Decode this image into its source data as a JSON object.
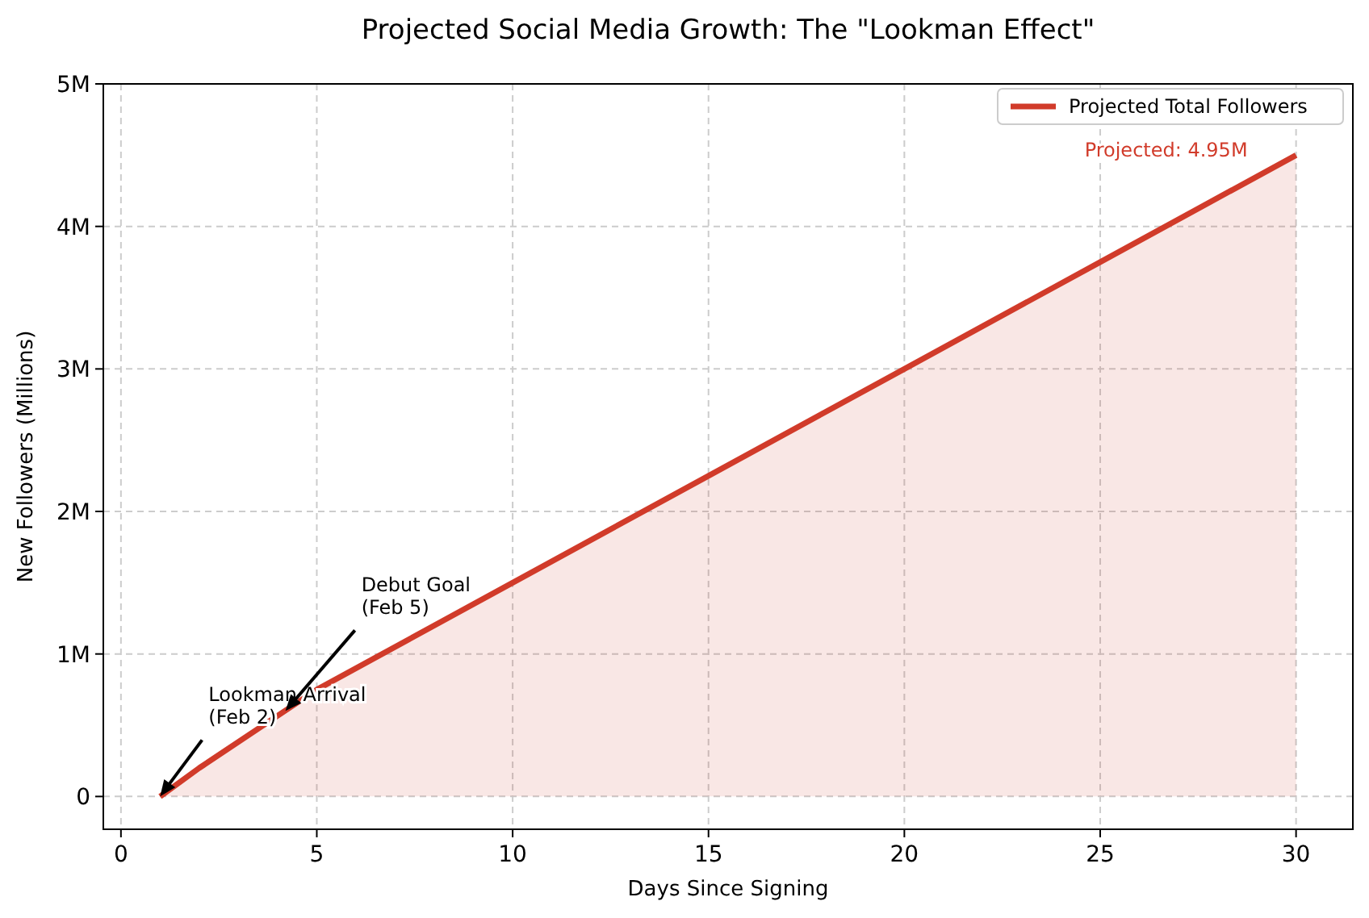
{
  "chart_data": {
    "type": "area",
    "title": "Projected Social Media Growth: The \"Lookman Effect\"",
    "xlabel": "Days Since Signing",
    "ylabel": "New Followers (Millions)",
    "x": [
      1,
      2,
      5,
      10,
      15,
      20,
      25,
      30
    ],
    "series": [
      {
        "name": "Projected Total Followers",
        "color": "#d13b2a",
        "values": [
          0,
          0.2,
          0.75,
          1.5,
          2.25,
          3,
          3.75,
          4.5
        ]
      }
    ],
    "xlim": [
      -0.45,
      31.45
    ],
    "ylim": [
      -0.23,
      5
    ],
    "xticks": [
      0,
      5,
      10,
      15,
      20,
      25,
      30
    ],
    "yticks": [
      0,
      {
        "value": 1,
        "label": "1M"
      },
      {
        "value": 2,
        "label": "2M"
      },
      {
        "value": 3,
        "label": "3M"
      },
      {
        "value": 4,
        "label": "4M"
      },
      {
        "value": 5,
        "label": "5M"
      }
    ],
    "annotations": [
      {
        "text": "Lookman Arrival\n(Feb 2)",
        "x": 1,
        "y": 0
      },
      {
        "text": "Debut Goal\n(Feb 5)",
        "x": 4.2,
        "y": 0.6
      },
      {
        "text": "Projected: 4.95M",
        "x": 30,
        "y": 4.5
      }
    ],
    "grid": true,
    "legend": "top right",
    "marker": "none",
    "line_style": "solid"
  }
}
